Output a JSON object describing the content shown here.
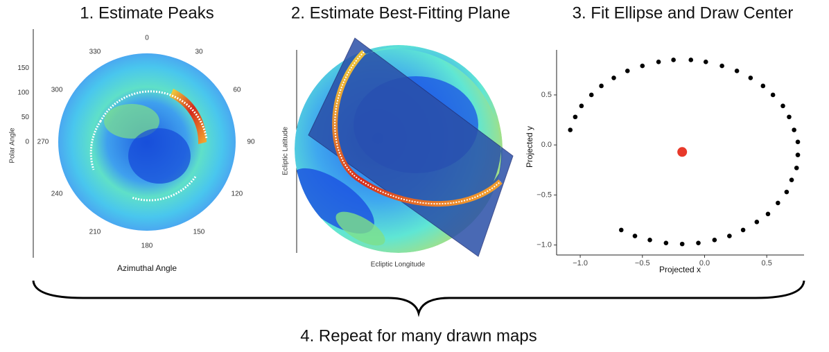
{
  "panels": [
    {
      "title": "1. Estimate Peaks",
      "y_label": "Polar Angle",
      "x_label": "Azimuthal Angle",
      "radial_max": 180,
      "radial_ticks": [
        150,
        100,
        50,
        0
      ],
      "angle_ticks": [
        0,
        30,
        60,
        90,
        120,
        150,
        180,
        210,
        240,
        270,
        300,
        330
      ]
    },
    {
      "title": "2. Estimate Best-Fitting Plane",
      "y_label": "Ecliptic Latitude",
      "x_label": "Ecliptic Longitude"
    }
  ],
  "chart_data": {
    "type": "scatter",
    "title": "3. Fit Ellipse and Draw Center",
    "x_label": "Projected x",
    "y_label": "Projected y",
    "xlim": [
      -1.19,
      0.8
    ],
    "ylim": [
      -1.1,
      0.95
    ],
    "xticks": [
      {
        "value": -1.0,
        "label": "−1.0"
      },
      {
        "value": -0.5,
        "label": "−0.5"
      },
      {
        "value": 0.0,
        "label": "0.0"
      },
      {
        "value": 0.5,
        "label": "0.5"
      }
    ],
    "yticks": [
      {
        "value": -1.0,
        "label": "−1.0"
      },
      {
        "value": -0.5,
        "label": "−0.5"
      },
      {
        "value": 0.0,
        "label": "0.0"
      },
      {
        "value": 0.5,
        "label": "0.5"
      }
    ],
    "color": "#000000",
    "x": [
      -1.08,
      -1.04,
      -0.99,
      -0.91,
      -0.83,
      -0.73,
      -0.62,
      -0.5,
      -0.37,
      -0.25,
      -0.11,
      0.01,
      0.14,
      0.26,
      0.37,
      0.47,
      0.55,
      0.63,
      0.68,
      0.72,
      0.75,
      0.75,
      0.74,
      0.7,
      0.66,
      0.59,
      0.51,
      0.42,
      0.31,
      0.2,
      0.08,
      -0.05,
      -0.18,
      -0.31,
      -0.44,
      -0.56,
      -0.67
    ],
    "y": [
      0.15,
      0.28,
      0.39,
      0.5,
      0.59,
      0.67,
      0.74,
      0.79,
      0.83,
      0.85,
      0.85,
      0.83,
      0.79,
      0.74,
      0.67,
      0.59,
      0.5,
      0.39,
      0.28,
      0.15,
      0.03,
      -0.1,
      -0.23,
      -0.35,
      -0.47,
      -0.58,
      -0.69,
      -0.77,
      -0.85,
      -0.91,
      -0.95,
      -0.98,
      -0.99,
      -0.98,
      -0.95,
      -0.91,
      -0.85
    ],
    "center": {
      "x": -0.18,
      "y": -0.07,
      "color": "#e8392a"
    }
  },
  "footer": "4. Repeat for many drawn maps"
}
